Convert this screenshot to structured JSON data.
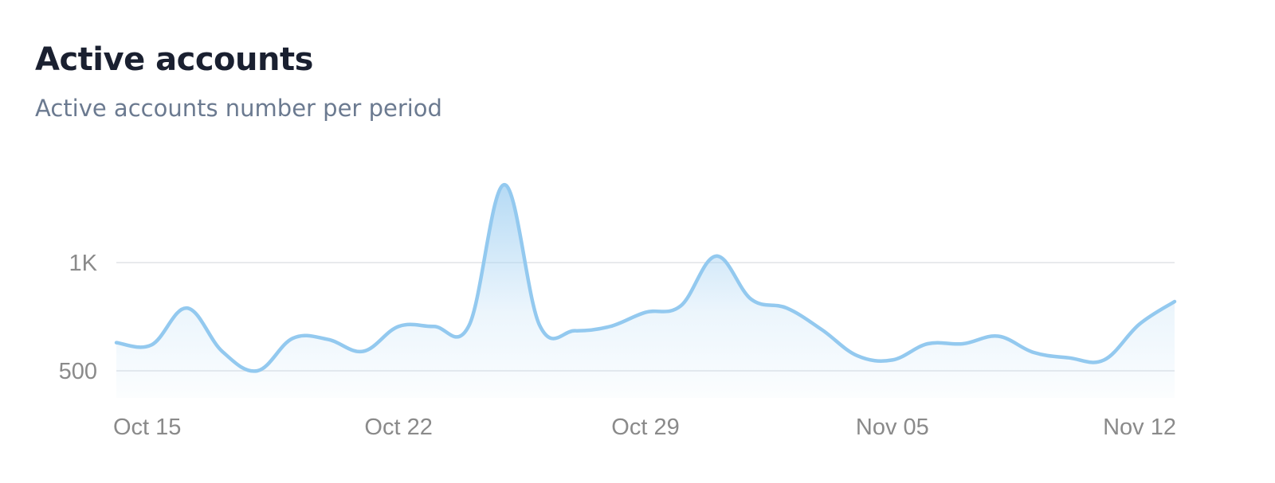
{
  "header": {
    "title": "Active accounts",
    "subtitle": "Active accounts number per period"
  },
  "colors": {
    "line": "#93c9ef",
    "fill_top": "#a9d4f3",
    "grid": "#e8eaed",
    "tick_text": "#8a8a8a"
  },
  "chart_data": {
    "type": "area",
    "title": "Active accounts",
    "subtitle": "Active accounts number per period",
    "x": [
      "Oct 14",
      "Oct 15",
      "Oct 16",
      "Oct 17",
      "Oct 18",
      "Oct 19",
      "Oct 20",
      "Oct 21",
      "Oct 22",
      "Oct 23",
      "Oct 24",
      "Oct 25",
      "Oct 26",
      "Oct 27",
      "Oct 28",
      "Oct 29",
      "Oct 30",
      "Oct 31",
      "Nov 01",
      "Nov 02",
      "Nov 03",
      "Nov 04",
      "Nov 05",
      "Nov 06",
      "Nov 07",
      "Nov 08",
      "Nov 09",
      "Nov 10",
      "Nov 11",
      "Nov 12",
      "Nov 13"
    ],
    "series": [
      {
        "values": [
          630,
          620,
          790,
          590,
          500,
          650,
          645,
          590,
          705,
          705,
          710,
          1360,
          710,
          685,
          705,
          770,
          800,
          1030,
          830,
          790,
          690,
          570,
          550,
          625,
          625,
          660,
          585,
          560,
          550,
          715,
          820
        ]
      }
    ],
    "x_tick_labels": [
      "Oct 15",
      "Oct 22",
      "Oct 29",
      "Nov 05",
      "Nov 12"
    ],
    "y_tick_labels": [
      "500",
      "1K"
    ],
    "y_ticks": [
      500,
      1000
    ],
    "ylim": [
      500,
      1000
    ],
    "grid": true,
    "legend": "none",
    "xlabel": "",
    "ylabel": ""
  }
}
